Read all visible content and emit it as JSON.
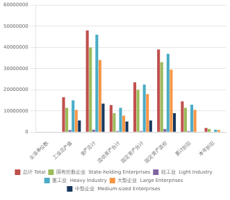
{
  "chart_data": {
    "type": "bar",
    "categories": [
      "企业单位数",
      "工业总产值",
      "资产总计",
      "流动资产合计",
      "固定资产合计",
      "固定资产原价",
      "累计折旧",
      "本年折旧"
    ],
    "series": [
      {
        "name": "总计 Total",
        "color": "#c0504d",
        "values": [
          0,
          16500000,
          48000000,
          12800000,
          23500000,
          39000000,
          14500000,
          2000000
        ]
      },
      {
        "name": "国有控股企业  State-holding Enterprises",
        "color": "#9bbb59",
        "values": [
          0,
          11500000,
          40000000,
          9000000,
          20000000,
          33000000,
          11500000,
          1500000
        ]
      },
      {
        "name": "轻工业  Light Industry",
        "color": "#8064a2",
        "values": [
          0,
          1000000,
          1200000,
          500000,
          500000,
          1500000,
          500000,
          0
        ]
      },
      {
        "name": "重工业  Heavy Industry",
        "color": "#4bacc6",
        "values": [
          0,
          15000000,
          46000000,
          11500000,
          22500000,
          37000000,
          13000000,
          1200000
        ]
      },
      {
        "name": "大型企业  Large Enterprises",
        "color": "#f79646",
        "values": [
          0,
          10500000,
          34000000,
          7800000,
          18000000,
          29500000,
          10500000,
          1000000
        ]
      },
      {
        "name": "中型企业  Medium-sized Enterprises",
        "color": "#17375e",
        "values": [
          0,
          5500000,
          13500000,
          5000000,
          5500000,
          9000000,
          0,
          0
        ]
      }
    ],
    "ylim": [
      0,
      60000000
    ],
    "yticks": [
      0,
      10000000,
      20000000,
      30000000,
      40000000,
      50000000,
      60000000
    ],
    "grid": true,
    "legend": "bottom"
  }
}
